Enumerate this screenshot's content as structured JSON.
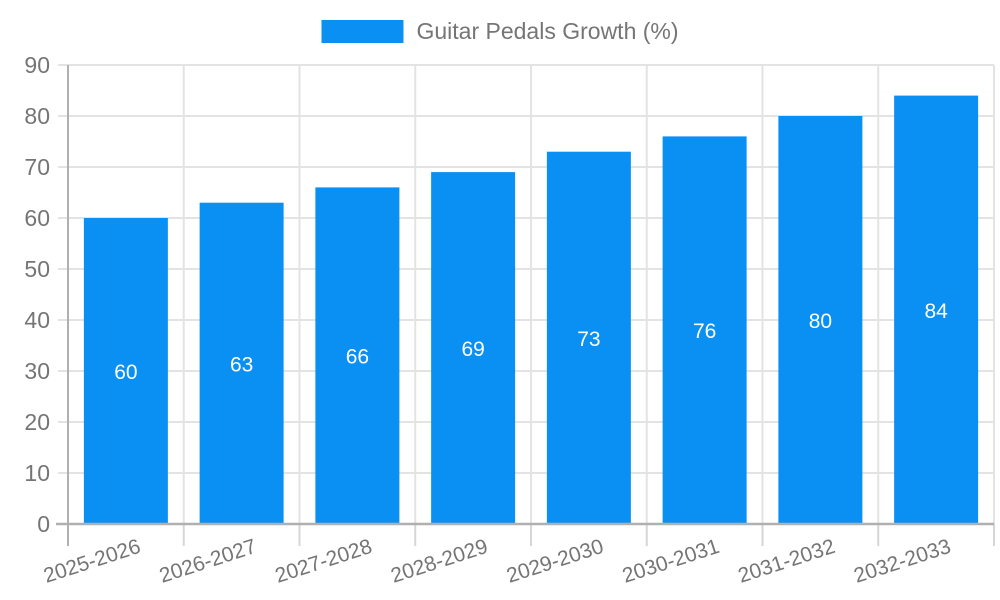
{
  "chart_data": {
    "type": "bar",
    "title": "Guitar Pedals Growth (%)",
    "categories": [
      "2025-2026",
      "2026-2027",
      "2027-2028",
      "2028-2029",
      "2029-2030",
      "2030-2031",
      "2031-2032",
      "2032-2033"
    ],
    "values": [
      60,
      63,
      66,
      69,
      73,
      76,
      80,
      84
    ],
    "series": [
      {
        "name": "Guitar Pedals Growth (%)",
        "values": [
          60,
          63,
          66,
          69,
          73,
          76,
          80,
          84
        ]
      }
    ],
    "xlabel": "",
    "ylabel": "",
    "ylim": [
      0,
      90
    ],
    "y_ticks": [
      0,
      10,
      20,
      30,
      40,
      50,
      60,
      70,
      80,
      90
    ],
    "grid": true,
    "legend_position": "top",
    "value_labels_shown": true,
    "bar_color": "#0a90f2",
    "value_label_color": "#ffffff",
    "axis_text_color": "#757575",
    "axis_line_color": "#b0b0b0",
    "gridline_color": "#e3e3e3",
    "tick_color": "#d6d6d6"
  }
}
